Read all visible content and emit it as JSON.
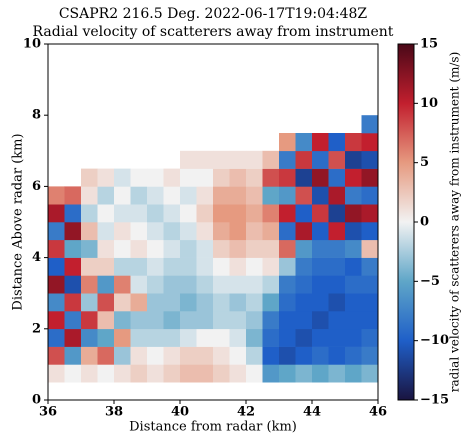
{
  "chart_data": {
    "type": "heatmap",
    "title": "CSAPR2 216.5 Deg. 2022-06-17T19:04:48Z",
    "subtitle": "Radial velocity of scatterers away from instrument",
    "xlabel": "Distance from radar (km)",
    "ylabel": "Distance Above radar  (km)",
    "colorbar_label": "radial velocity of scatterers away from instrument (m/s)",
    "xlim": [
      36,
      46
    ],
    "xticks": [
      36,
      38,
      40,
      42,
      44,
      46
    ],
    "ylim": [
      0,
      10
    ],
    "yticks": [
      0,
      2,
      4,
      6,
      8,
      10
    ],
    "clim": [
      -15,
      15
    ],
    "cticks": [
      {
        "value": -15,
        "label": "−15"
      },
      {
        "value": -10,
        "label": "−10"
      },
      {
        "value": -5,
        "label": "−5"
      },
      0,
      5,
      10,
      15
    ],
    "colormap": [
      "#1a1440",
      "#1f5fc8",
      "#5fa6c8",
      "#f2f2f2",
      "#e69a80",
      "#c21f2e",
      "#4a0818"
    ],
    "x_edges": [
      36,
      36.5,
      37,
      37.5,
      38,
      38.5,
      39,
      39.5,
      40,
      40.5,
      41,
      41.5,
      42,
      42.5,
      43,
      43.5,
      44,
      44.5,
      45,
      45.5,
      46
    ],
    "y_edges": [
      0.5,
      1,
      1.5,
      2,
      2.5,
      3,
      3.5,
      4,
      4.5,
      5,
      5.5,
      6,
      6.5,
      7,
      7.5,
      8
    ],
    "z": [
      [
        1,
        8,
        -9,
        10,
        -7,
        12,
        -10,
        9,
        -8,
        11,
        6,
        null,
        null,
        null,
        null
      ],
      [
        0,
        -6,
        11,
        -8,
        9,
        -11,
        10,
        -5,
        12,
        -9,
        7,
        null,
        null,
        null,
        null
      ],
      [
        1,
        4,
        -7,
        9,
        -3,
        6,
        2,
        -4,
        3,
        -2,
        1,
        2,
        null,
        null,
        null
      ],
      [
        0,
        7,
        -5,
        3,
        8,
        -6,
        2,
        1,
        -1,
        0,
        -2,
        1,
        null,
        null,
        null
      ],
      [
        1,
        -3,
        5,
        -4,
        2,
        6,
        -2,
        0,
        1,
        -1,
        0,
        -1,
        null,
        null,
        null
      ],
      [
        2,
        1,
        -2,
        -3,
        4,
        -1,
        -2,
        1,
        0,
        -1,
        -2,
        0,
        null,
        null,
        null
      ],
      [
        1,
        0,
        -2,
        -3,
        -3,
        -2,
        -1,
        0,
        -1,
        -2,
        -1,
        0,
        null,
        null,
        null
      ],
      [
        2,
        1,
        -2,
        -4,
        -3,
        -3,
        -2,
        -1,
        -2,
        -1,
        0,
        1,
        null,
        null,
        null
      ],
      [
        3,
        2,
        -1,
        -3,
        -4,
        -3,
        -2,
        -2,
        -1,
        0,
        -1,
        0,
        1,
        null,
        null
      ],
      [
        3,
        2,
        0,
        -3,
        -3,
        -2,
        -1,
        -1,
        1,
        2,
        1,
        0,
        1,
        null,
        null
      ],
      [
        2,
        1,
        0,
        -2,
        -2,
        -1,
        0,
        2,
        4,
        5,
        4,
        2,
        1,
        null,
        null
      ],
      [
        1,
        0,
        -1,
        -2,
        -3,
        -1,
        1,
        3,
        5,
        5,
        4,
        3,
        1,
        null,
        null
      ],
      [
        0,
        -2,
        -4,
        -3,
        -2,
        -1,
        0,
        2,
        3,
        4,
        3,
        2,
        1,
        null,
        null
      ],
      [
        -6,
        -10,
        -9,
        -8,
        -5,
        -2,
        1,
        2,
        4,
        6,
        -5,
        8,
        3,
        null,
        null
      ],
      [
        -5,
        -11,
        -10,
        -10,
        -9,
        -8,
        -3,
        7,
        -9,
        10,
        -6,
        9,
        -8,
        5,
        null
      ],
      [
        -4,
        -10,
        -11,
        -10,
        -10,
        -9,
        -8,
        -6,
        11,
        -10,
        8,
        -12,
        9,
        -7,
        null
      ],
      [
        -5,
        -9,
        -10,
        -11,
        -10,
        -10,
        -9,
        -8,
        -10,
        9,
        -11,
        12,
        -9,
        10,
        null
      ],
      [
        -4,
        -10,
        -10,
        -10,
        -11,
        -10,
        -9,
        -8,
        10,
        -12,
        11,
        -9,
        8,
        -10,
        null
      ],
      [
        -5,
        -9,
        -10,
        -10,
        -10,
        -9,
        -10,
        -7,
        -11,
        12,
        -8,
        10,
        -12,
        9,
        null
      ],
      [
        -4,
        -8,
        -9,
        -10,
        -10,
        -9,
        -8,
        3,
        -10,
        11,
        -9,
        12,
        -11,
        10,
        -8
      ]
    ]
  }
}
